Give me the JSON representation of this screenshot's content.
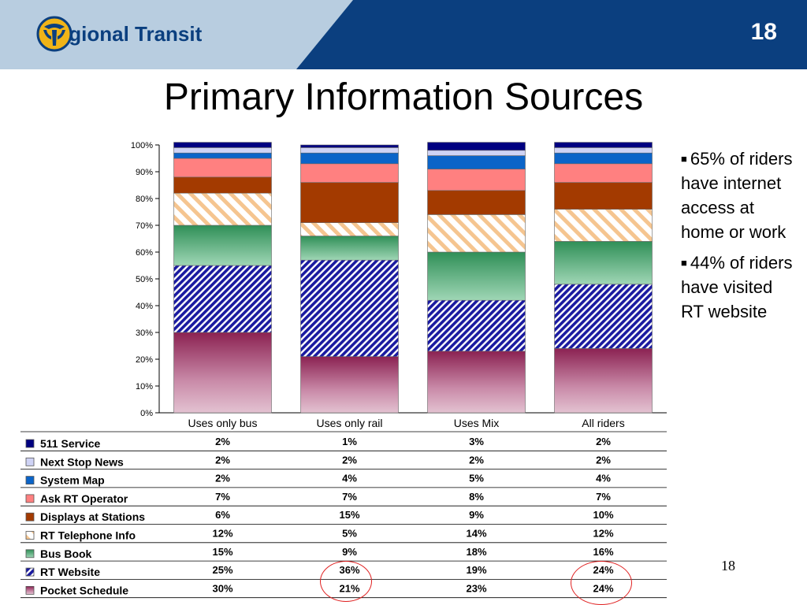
{
  "header": {
    "brand": "Regional Transit",
    "slide_number": "18"
  },
  "title": "Primary Information Sources",
  "bullets": [
    "65% of riders have internet access at home or work",
    "44% of riders have visited RT website"
  ],
  "footer": {
    "page_number": "18"
  },
  "colors": {
    "header_dark": "#0b3f7f",
    "header_light": "#b8cde0",
    "highlight_circle": "#e02020"
  },
  "chart_data": {
    "type": "bar",
    "stacked": true,
    "percent_stacked": true,
    "categories": [
      "Uses only bus",
      "Uses only rail",
      "Uses Mix",
      "All riders"
    ],
    "ylim": [
      0,
      100
    ],
    "yticks": [
      "0%",
      "10%",
      "20%",
      "30%",
      "40%",
      "50%",
      "60%",
      "70%",
      "80%",
      "90%",
      "100%"
    ],
    "series": [
      {
        "name": "Pocket Schedule",
        "values": [
          "30%",
          "21%",
          "23%",
          "24%"
        ],
        "color": "#8b2252",
        "pattern": "gradient-maroon"
      },
      {
        "name": "RT Website",
        "values": [
          "25%",
          "36%",
          "19%",
          "24%"
        ],
        "color": "#1a1aa0",
        "pattern": "hatch-blue"
      },
      {
        "name": "Bus Book",
        "values": [
          "15%",
          "9%",
          "18%",
          "16%"
        ],
        "color": "#3a9a60",
        "pattern": "gradient-green"
      },
      {
        "name": "RT Telephone Info",
        "values": [
          "12%",
          "5%",
          "14%",
          "12%"
        ],
        "color": "#f5c590",
        "pattern": "hatch-orange"
      },
      {
        "name": "Displays at Stations",
        "values": [
          "6%",
          "15%",
          "9%",
          "10%"
        ],
        "color": "#a33a00",
        "pattern": "solid"
      },
      {
        "name": "Ask RT Operator",
        "values": [
          "7%",
          "7%",
          "8%",
          "7%"
        ],
        "color": "#ff8080",
        "pattern": "solid"
      },
      {
        "name": "System Map",
        "values": [
          "2%",
          "4%",
          "5%",
          "4%"
        ],
        "color": "#0b64c8",
        "pattern": "solid"
      },
      {
        "name": "Next Stop News",
        "values": [
          "2%",
          "2%",
          "2%",
          "2%"
        ],
        "color": "#cfd3f5",
        "pattern": "solid"
      },
      {
        "name": "511 Service",
        "values": [
          "2%",
          "1%",
          "3%",
          "2%"
        ],
        "color": "#000080",
        "pattern": "solid"
      }
    ],
    "legend": "table-bottom",
    "highlighted_cells": [
      {
        "series": "RT Website",
        "category": "Uses only rail"
      },
      {
        "series": "RT Website",
        "category": "All riders"
      },
      {
        "series": "Pocket Schedule",
        "category": "All riders"
      }
    ]
  }
}
